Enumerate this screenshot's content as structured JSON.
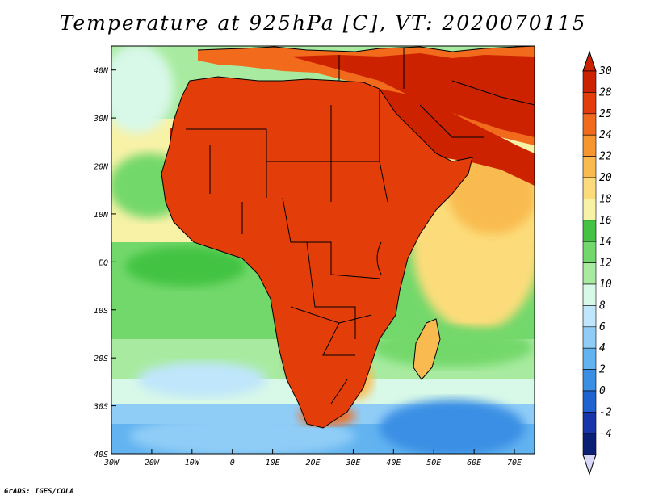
{
  "map": {
    "title": "Temperature at 925hPa [C], VT: 2020070115",
    "credit": "GrADS: IGES/COLA",
    "lon_range": [
      -30,
      75
    ],
    "lat_range": [
      -40,
      45
    ],
    "lat_ticks": [
      "40N",
      "30N",
      "20N",
      "10N",
      "EQ",
      "10S",
      "20S",
      "30S",
      "40S"
    ],
    "lon_ticks": [
      "30W",
      "20W",
      "10W",
      "0",
      "10E",
      "20E",
      "30E",
      "40E",
      "50E",
      "60E",
      "70E"
    ],
    "colorbar": {
      "labels": [
        "30",
        "28",
        "25",
        "24",
        "22",
        "20",
        "18",
        "16",
        "14",
        "12",
        "10",
        "8",
        "6",
        "4",
        "2",
        "0",
        "-2",
        "-4"
      ],
      "colors": [
        "#cc2200",
        "#e33d0a",
        "#f26a1c",
        "#f7952f",
        "#f9bb4f",
        "#fcdc7a",
        "#f7f2a6",
        "#43c343",
        "#73d86b",
        "#a8eba0",
        "#d8f8e8",
        "#bfe6fb",
        "#90cdf6",
        "#62b3f0",
        "#3a8fe4",
        "#1f63d3",
        "#1636aa",
        "#0b1f75"
      ],
      "arrow_top": "#cc2200",
      "arrow_bottom": "#d8d8f8"
    },
    "legend_colors": {
      "ocean_south": "#62b3f0",
      "ocean_mid": "#a8eba0",
      "ocean_tropic": "#f7f2a6",
      "land_hot": "#cc2200",
      "land_warm": "#f26a1c",
      "boundary": "#000000"
    }
  }
}
